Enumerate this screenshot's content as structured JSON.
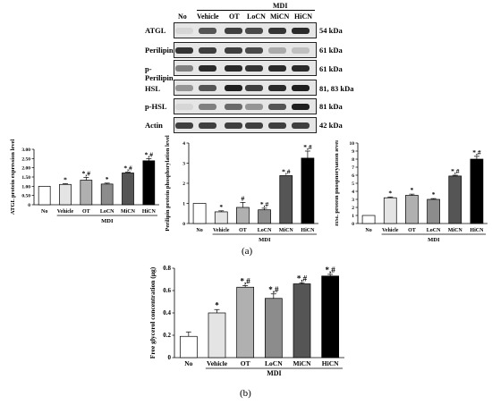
{
  "blot": {
    "group_label": "MDI",
    "lanes": [
      "No",
      "Vehicle",
      "OT",
      "LoCN",
      "MiCN",
      "HiCN"
    ],
    "rows": [
      {
        "name": "ATGL",
        "kda": "54 kDa",
        "intensity": [
          0.1,
          0.7,
          0.8,
          0.75,
          0.85,
          0.9
        ]
      },
      {
        "name": "Perilipin",
        "kda": "61 kDa",
        "intensity": [
          0.85,
          0.8,
          0.8,
          0.75,
          0.3,
          0.2
        ]
      },
      {
        "name": "p-Perilipin",
        "kda": "61 kDa",
        "intensity": [
          0.5,
          0.9,
          0.9,
          0.85,
          0.9,
          0.9
        ]
      },
      {
        "name": "HSL",
        "kda": "81, 83 kDa",
        "intensity": [
          0.4,
          0.7,
          0.95,
          0.8,
          0.9,
          0.95
        ]
      },
      {
        "name": "p-HSL",
        "kda": "81 kDa",
        "intensity": [
          0.1,
          0.5,
          0.6,
          0.4,
          0.7,
          0.95
        ]
      },
      {
        "name": "Actin",
        "kda": "42 kDa",
        "intensity": [
          0.8,
          0.8,
          0.8,
          0.8,
          0.8,
          0.8
        ]
      }
    ]
  },
  "panel_labels": {
    "a": "(a)",
    "b": "(b)"
  },
  "chart_data": [
    {
      "type": "bar",
      "id": "atgl",
      "ylabel": "ATGL protein expression level",
      "xlabel": "MDI",
      "categories": [
        "No",
        "Vehicle",
        "OT",
        "LoCN",
        "MiCN",
        "HiCN"
      ],
      "values": [
        1.0,
        1.1,
        1.33,
        1.12,
        1.72,
        2.38
      ],
      "errors": [
        0.0,
        0.04,
        0.15,
        0.05,
        0.04,
        0.12
      ],
      "annotations": [
        "",
        "*",
        "*,#",
        "*",
        "*,#",
        "*,#"
      ],
      "ylim": [
        0,
        3.0
      ],
      "yticks": [
        0,
        0.5,
        1.0,
        1.5,
        2.0,
        2.5,
        3.0
      ],
      "ytick_labels": [
        "0",
        "0.50",
        "1.00",
        "1.50",
        "2.00",
        "2.50",
        "3.00"
      ],
      "colors": [
        "#ffffff",
        "#e4e4e4",
        "#b0b0b0",
        "#8c8c8c",
        "#555555",
        "#000000"
      ]
    },
    {
      "type": "bar",
      "id": "perilipin",
      "ylabel": "Perilipin protein phosphorylation level",
      "xlabel": "MDI",
      "categories": [
        "No",
        "Vehicle",
        "OT",
        "LoCN",
        "MiCN",
        "HiCN"
      ],
      "values": [
        1.0,
        0.58,
        0.8,
        0.68,
        2.38,
        3.25
      ],
      "errors": [
        0.0,
        0.05,
        0.25,
        0.08,
        0.0,
        0.35
      ],
      "annotations": [
        "",
        "*",
        "#",
        "*,#",
        "*,#",
        "*,#"
      ],
      "ylim": [
        0,
        4
      ],
      "yticks": [
        0,
        1,
        2,
        3,
        4
      ],
      "ytick_labels": [
        "0",
        "1",
        "2",
        "3",
        "4"
      ],
      "colors": [
        "#ffffff",
        "#e4e4e4",
        "#b0b0b0",
        "#8c8c8c",
        "#555555",
        "#000000"
      ]
    },
    {
      "type": "bar",
      "id": "hsl",
      "ylabel": "HSL protein phosphorylation level",
      "xlabel": "MDI",
      "categories": [
        "No",
        "Vehicle",
        "OT",
        "LoCN",
        "MiCN",
        "HiCN"
      ],
      "values": [
        1.0,
        3.2,
        3.5,
        3.0,
        5.9,
        8.0
      ],
      "errors": [
        0.0,
        0.1,
        0.15,
        0.1,
        0.1,
        0.35
      ],
      "annotations": [
        "",
        "*",
        "*",
        "*",
        "*,#",
        "*,#"
      ],
      "ylim": [
        0,
        10
      ],
      "yticks": [
        0,
        1,
        2,
        3,
        4,
        5,
        6,
        7,
        8,
        9,
        10
      ],
      "ytick_labels": [
        "0",
        "1",
        "2",
        "3",
        "4",
        "5",
        "6",
        "7",
        "8",
        "9",
        "10"
      ],
      "colors": [
        "#ffffff",
        "#e4e4e4",
        "#b0b0b0",
        "#8c8c8c",
        "#555555",
        "#000000"
      ]
    },
    {
      "type": "bar",
      "id": "glycerol",
      "ylabel": "Free glycerol concentration (μg)",
      "xlabel": "MDI",
      "categories": [
        "No",
        "Vehicle",
        "OT",
        "LoCN",
        "MiCN",
        "HiCN"
      ],
      "values": [
        0.19,
        0.4,
        0.63,
        0.53,
        0.66,
        0.73
      ],
      "errors": [
        0.04,
        0.03,
        0.015,
        0.04,
        0.01,
        0.015
      ],
      "annotations": [
        "",
        "*",
        "*,#",
        "*,#",
        "*,#",
        "*,#"
      ],
      "ylim": [
        0,
        0.8
      ],
      "yticks": [
        0,
        0.2,
        0.4,
        0.6,
        0.8
      ],
      "ytick_labels": [
        "0",
        "0.2",
        "0.4",
        "0.6",
        "0.8"
      ],
      "colors": [
        "#ffffff",
        "#e4e4e4",
        "#b0b0b0",
        "#8c8c8c",
        "#555555",
        "#000000"
      ]
    }
  ]
}
